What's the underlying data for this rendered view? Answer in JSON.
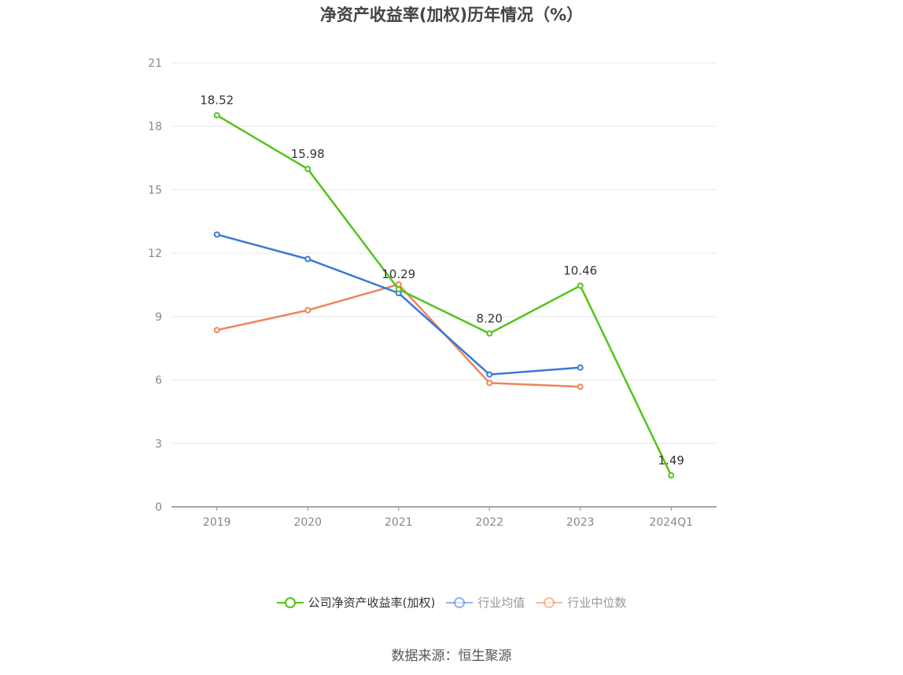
{
  "chart_data": {
    "type": "line",
    "title": "净资产收益率(加权)历年情况（%）",
    "categories": [
      "2019",
      "2020",
      "2021",
      "2022",
      "2023",
      "2024Q1"
    ],
    "ylim": [
      0,
      21
    ],
    "yticks": [
      0,
      3,
      6,
      9,
      12,
      15,
      18,
      21
    ],
    "grid": true,
    "legend_position": "bottom",
    "series": [
      {
        "name": "公司净资产收益率(加权)",
        "color": "#52c41a",
        "values": [
          18.52,
          15.98,
          10.29,
          8.2,
          10.46,
          1.49
        ],
        "labels": [
          "18.52",
          "15.98",
          "10.29",
          "8.20",
          "10.46",
          "1.49"
        ]
      },
      {
        "name": "行业均值",
        "color": "#3a78d8",
        "values": [
          12.88,
          11.72,
          10.11,
          6.26,
          6.59,
          null
        ]
      },
      {
        "name": "行业中位数",
        "color": "#f0845a",
        "values": [
          8.36,
          9.3,
          10.52,
          5.86,
          5.68,
          null
        ]
      }
    ]
  },
  "source": "数据来源：恒生聚源"
}
